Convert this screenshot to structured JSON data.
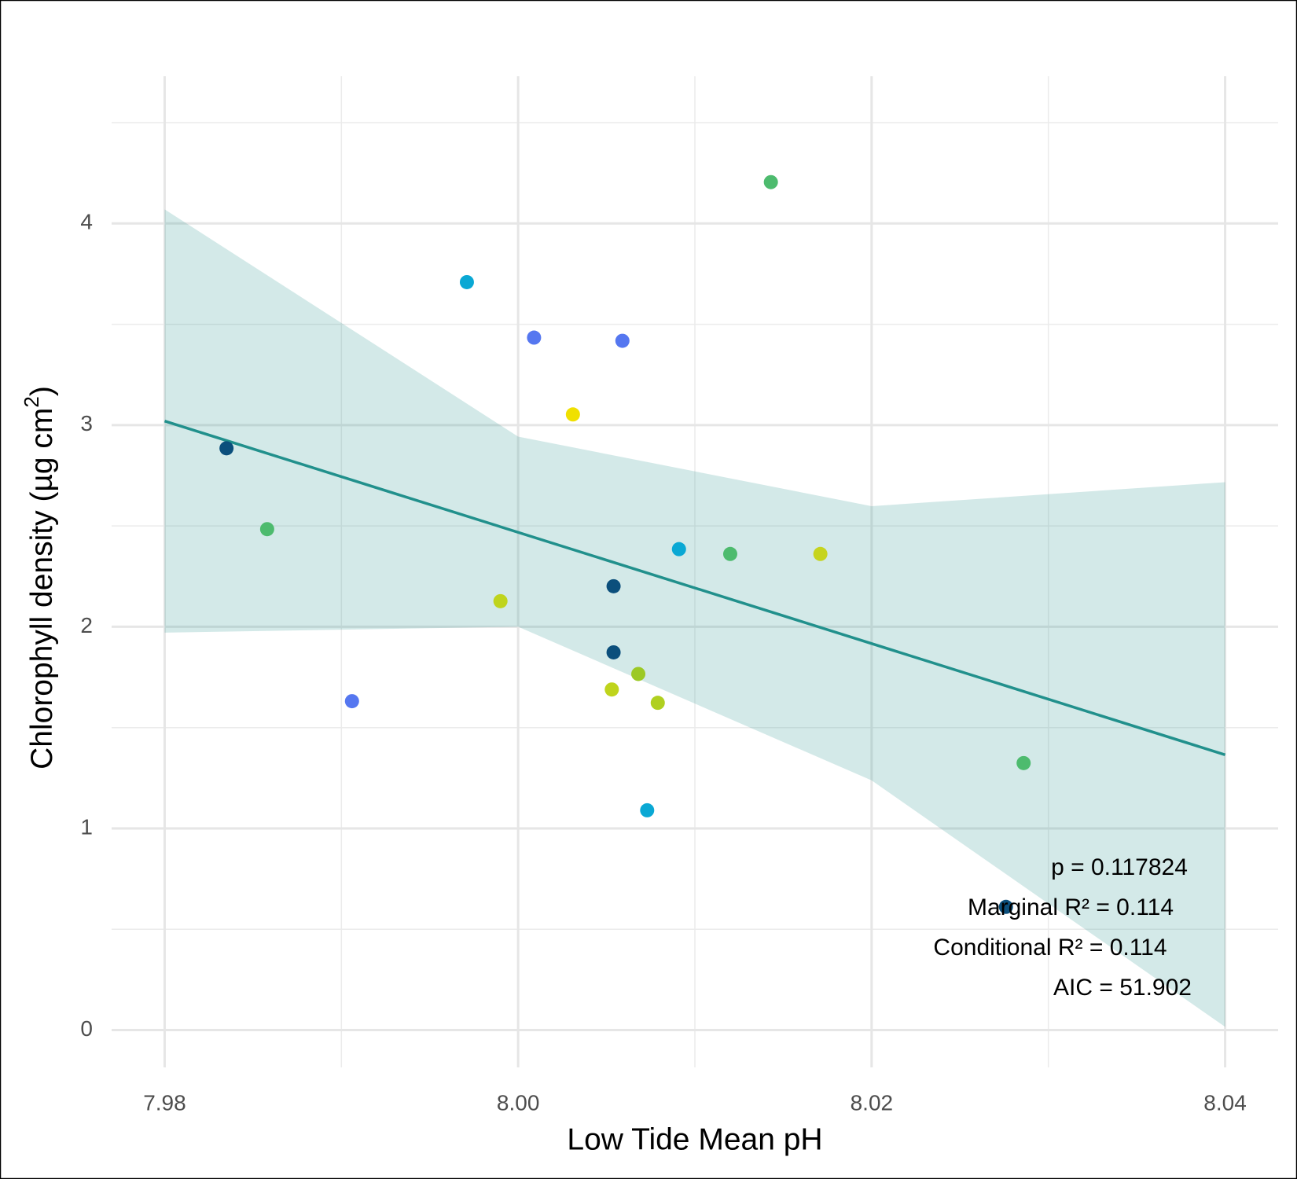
{
  "chart_data": {
    "type": "scatter",
    "x_label": "Low Tide Mean pH",
    "y_label_parts": [
      "Chlorophyll density (µg cm",
      "2",
      ")"
    ],
    "xlim": [
      7.977,
      8.043
    ],
    "ylim": [
      -0.185,
      4.73
    ],
    "xticks": [
      7.98,
      {
        "value": 8.0,
        "label": "8.00"
      },
      8.02,
      8.04
    ],
    "yticks": [
      0,
      1,
      2,
      3,
      4
    ],
    "xminor": [
      7.99,
      8.01,
      8.03
    ],
    "yminor": [
      0.5,
      1.5,
      2.5,
      3.5,
      4.5
    ],
    "grid": true,
    "x": [
      7.9835,
      7.9858,
      7.9906,
      7.9971,
      7.999,
      8.0009,
      8.0031,
      8.0053,
      8.0054,
      8.0054,
      8.0059,
      8.0068,
      8.0073,
      8.0079,
      8.0091,
      8.012,
      8.0143,
      8.0171,
      8.0276,
      8.0286
    ],
    "values": [
      2.885,
      2.484,
      1.631,
      3.709,
      2.127,
      3.434,
      3.053,
      1.689,
      2.201,
      1.873,
      3.418,
      1.766,
      1.09,
      1.623,
      2.385,
      2.361,
      4.205,
      2.361,
      0.611,
      1.324
    ],
    "colors": [
      "#0b4f7c",
      "#4dbb6e",
      "#5577f0",
      "#0aa8d4",
      "#bfd41c",
      "#5577f0",
      "#f0e000",
      "#bfd41c",
      "#0b4f7c",
      "#0b4f7c",
      "#5577f0",
      "#9cc925",
      "#0aa8d4",
      "#b0d020",
      "#0aa8d4",
      "#4dbb6e",
      "#4dbb6e",
      "#c6d41e",
      "#0b4f7c",
      "#4dbb6e"
    ],
    "fit": {
      "color": "#21908c",
      "x": [
        7.98,
        8.04
      ],
      "values": [
        3.02,
        1.365
      ]
    },
    "band": {
      "color": "#21908c",
      "x": [
        7.98,
        8.0,
        8.02,
        8.04
      ],
      "upper": [
        4.07,
        2.943,
        2.598,
        2.717
      ],
      "lower": [
        1.971,
        2.0,
        1.238,
        0.016
      ]
    },
    "annotations": [
      "p = 0.117824",
      "Marginal R² = 0.114",
      "Conditional R² = 0.114",
      "AIC =  51.902"
    ]
  }
}
